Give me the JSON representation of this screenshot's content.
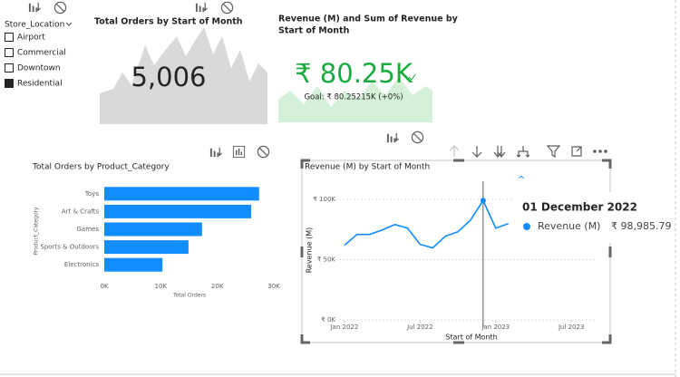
{
  "slicer": {
    "title": "Store_Location",
    "items": [
      "Airport",
      "Commercial",
      "Downtown",
      "Residential"
    ],
    "checked": [
      false,
      false,
      false,
      true
    ]
  },
  "cards": [
    {
      "title": "Total Orders by Start of Month",
      "value": "5,006"
    },
    {
      "title_lines": [
        "Revenue (M) and Sum of Revenue by",
        "Start of Month"
      ],
      "value": "₹ 80.25K",
      "goal": "Goal: ₹ 80.25215K (+0%)"
    }
  ],
  "chart_data": [
    {
      "type": "barh",
      "title": "Total Orders by Product_Category",
      "categories": [
        "Toys",
        "Art & Crafts",
        "Games",
        "Sports & Outdoors",
        "Electronics"
      ],
      "values": [
        27400,
        26000,
        17300,
        14900,
        10300
      ],
      "color": "#118dff",
      "xlim": [
        0,
        30000
      ],
      "xticks": [
        {
          "value": 0,
          "label": "0K"
        },
        {
          "value": 10000,
          "label": "10K"
        },
        {
          "value": 20000,
          "label": "20K"
        },
        {
          "value": 30000,
          "label": "30K"
        }
      ],
      "xlabel": "Total Orders",
      "ylabel": "Product_Category"
    },
    {
      "type": "line",
      "title": "Revenue (M) by Start of Month",
      "x": [
        "2022-01",
        "2022-02",
        "2022-03",
        "2022-04",
        "2022-05",
        "2022-06",
        "2022-07",
        "2022-08",
        "2022-09",
        "2022-10",
        "2022-11",
        "2022-12",
        "2023-01",
        "2023-02"
      ],
      "series": [
        {
          "name": "Revenue (M)",
          "color": "#118dff",
          "values": [
            61900,
            70900,
            70900,
            74600,
            79100,
            76100,
            62700,
            59700,
            69400,
            73100,
            82800,
            98985.79,
            76100,
            79900
          ],
          "value_labels": [
            null,
            null,
            null,
            null,
            null,
            null,
            null,
            null,
            null,
            null,
            null,
            "₹ 98,985.79",
            null,
            null
          ]
        }
      ],
      "xlim": [
        "2021-12",
        "2023-09"
      ],
      "xticks": [
        {
          "value": "2022-01",
          "label": "Jan 2022"
        },
        {
          "value": "2022-07",
          "label": "Jul 2022"
        },
        {
          "value": "2023-01",
          "label": "Jan 2023"
        },
        {
          "value": "2023-07",
          "label": "Jul 2023"
        }
      ],
      "ylim": [
        0,
        115000
      ],
      "yticks": [
        {
          "value": 0,
          "label": "₹ 0K"
        },
        {
          "value": 50000,
          "label": "₹ 50K"
        },
        {
          "value": 100000,
          "label": "₹ 100K"
        }
      ],
      "grid": true,
      "xlabel": "Start of Month",
      "ylabel": "Revenue (M)",
      "tooltip_title": "01 December 2022"
    }
  ]
}
